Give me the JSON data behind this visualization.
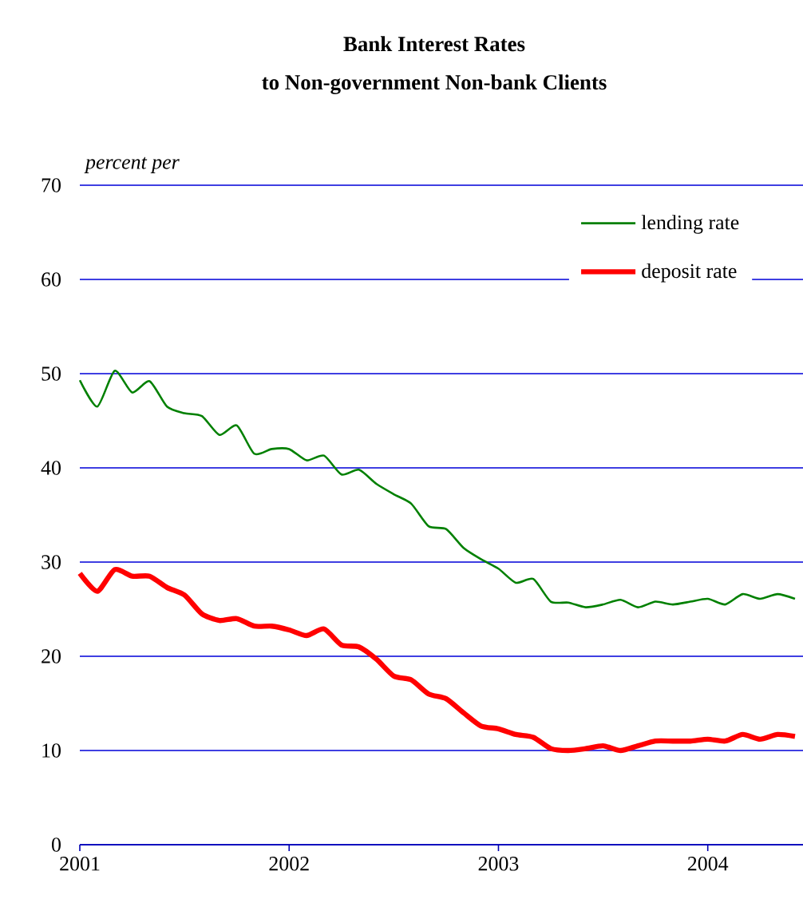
{
  "chart_data": {
    "type": "line",
    "title": "Bank Interest Rates",
    "subtitle": "to Non-government Non-bank Clients",
    "ylabel": "percent per",
    "x": [
      "2001-01",
      "2001-02",
      "2001-03",
      "2001-04",
      "2001-05",
      "2001-06",
      "2001-07",
      "2001-08",
      "2001-09",
      "2001-10",
      "2001-11",
      "2001-12",
      "2002-01",
      "2002-02",
      "2002-03",
      "2002-04",
      "2002-05",
      "2002-06",
      "2002-07",
      "2002-08",
      "2002-09",
      "2002-10",
      "2002-11",
      "2002-12",
      "2003-01",
      "2003-02",
      "2003-03",
      "2003-04",
      "2003-05",
      "2003-06",
      "2003-07",
      "2003-08",
      "2003-09",
      "2003-10",
      "2003-11",
      "2003-12",
      "2004-01",
      "2004-02",
      "2004-03",
      "2004-04",
      "2004-05",
      "2004-06"
    ],
    "series": [
      {
        "name": "lending rate",
        "color": "#008000",
        "values": [
          49.3,
          46.5,
          50.3,
          48,
          49.2,
          46.5,
          45.8,
          45.5,
          43.5,
          44.5,
          41.5,
          42,
          42,
          40.8,
          41.3,
          39.3,
          39.8,
          38.3,
          37.2,
          36.2,
          33.8,
          33.5,
          31.5,
          30.3,
          29.3,
          27.8,
          28.2,
          25.8,
          25.7,
          25.2,
          25.5,
          26,
          25.2,
          25.8,
          25.5,
          25.8,
          26.1,
          25.5,
          26.6,
          26.1,
          26.6,
          26.1
        ]
      },
      {
        "name": "deposit rate",
        "color": "#ff0000",
        "values": [
          28.8,
          26.9,
          29.2,
          28.5,
          28.5,
          27.3,
          26.5,
          24.5,
          23.8,
          24,
          23.2,
          23.2,
          22.8,
          22.2,
          22.9,
          21.2,
          21,
          19.7,
          17.9,
          17.5,
          16,
          15.5,
          14,
          12.6,
          12.3,
          11.7,
          11.4,
          10.2,
          10,
          10.2,
          10.5,
          10,
          10.5,
          11,
          11,
          11,
          11.2,
          11,
          11.7,
          11.2,
          11.7,
          11.5
        ]
      }
    ],
    "xlim": [
      "2001-01",
      "2004-06-15"
    ],
    "xticks": [
      "2001",
      "2002",
      "2003",
      "2004"
    ],
    "ylim": [
      0,
      70
    ],
    "yticks": [
      0,
      10,
      20,
      30,
      40,
      50,
      60,
      70
    ],
    "grid": "y",
    "legend": "top right",
    "line_style": "solid",
    "marker": "none"
  }
}
